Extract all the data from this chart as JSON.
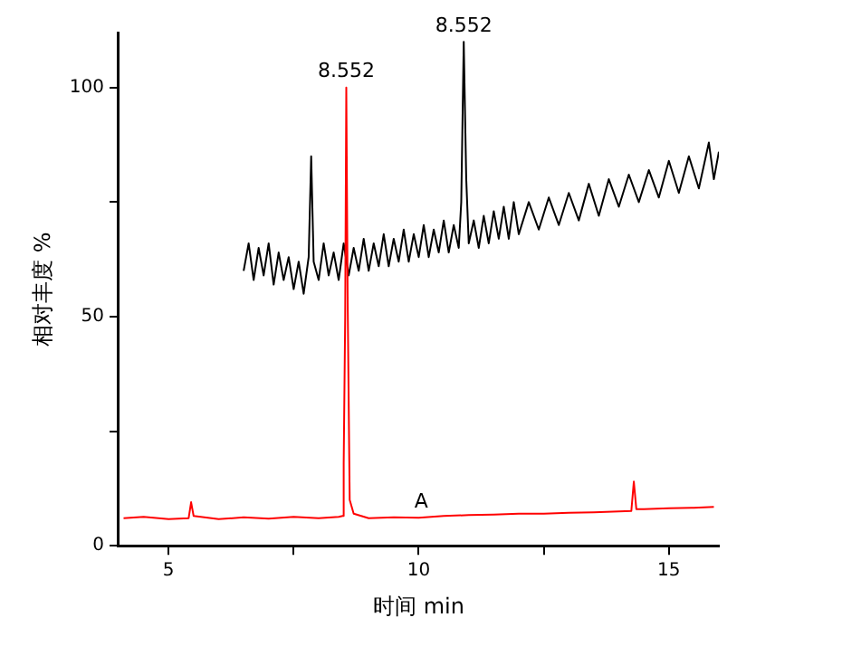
{
  "chart_data": {
    "type": "line",
    "xlabel": "时间 min",
    "ylabel": "相对丰度 %",
    "xlim": [
      4,
      16
    ],
    "xticks": [
      5,
      {
        "value": 7.5,
        "label": null
      },
      10,
      {
        "value": 12.5,
        "label": null
      },
      15
    ],
    "ylim": [
      0,
      112
    ],
    "yticks": [
      0,
      {
        "value": 25,
        "label": null
      },
      50,
      {
        "value": 75,
        "label": null
      },
      100
    ],
    "grid": false,
    "legend": false,
    "marker": "none",
    "line_style": "solid",
    "annotations": [
      {
        "text": "8.552",
        "x": 8.552,
        "y": 100
      },
      {
        "text": "8.552",
        "x": 10.9,
        "y": 110
      },
      {
        "text": "A",
        "x": 10.05,
        "y": 6.1
      }
    ],
    "series": [
      {
        "color": "#ff0000",
        "x": [
          4.1,
          4.5,
          5.0,
          5.4,
          5.45,
          5.5,
          6.0,
          6.5,
          7.0,
          7.5,
          8.0,
          8.4,
          8.48,
          8.5,
          8.53,
          8.552,
          8.58,
          8.62,
          8.7,
          9.0,
          9.5,
          10.0,
          10.5,
          11.0,
          11.5,
          12.0,
          12.5,
          13.0,
          13.5,
          14.0,
          14.25,
          14.3,
          14.35,
          14.5,
          15.0,
          15.5,
          15.9
        ],
        "values": [
          6,
          6.3,
          5.8,
          6,
          9.5,
          6.5,
          5.8,
          6.2,
          5.9,
          6.3,
          6,
          6.3,
          6.5,
          18,
          50,
          100,
          53,
          10,
          7,
          6,
          6.2,
          6.1,
          6.5,
          6.7,
          6.8,
          7,
          7,
          7.2,
          7.3,
          7.5,
          7.6,
          14,
          8,
          8,
          8.2,
          8.3,
          8.5
        ]
      },
      {
        "color": "#000000",
        "x": [
          6.5,
          6.6,
          6.7,
          6.8,
          6.9,
          7.0,
          7.1,
          7.2,
          7.3,
          7.4,
          7.5,
          7.6,
          7.7,
          7.8,
          7.85,
          7.9,
          8.0,
          8.1,
          8.2,
          8.3,
          8.4,
          8.5,
          8.6,
          8.7,
          8.8,
          8.9,
          9.0,
          9.1,
          9.2,
          9.3,
          9.4,
          9.5,
          9.6,
          9.7,
          9.8,
          9.9,
          10.0,
          10.1,
          10.2,
          10.3,
          10.4,
          10.5,
          10.6,
          10.7,
          10.8,
          10.85,
          10.9,
          10.95,
          11.0,
          11.1,
          11.2,
          11.3,
          11.4,
          11.5,
          11.6,
          11.7,
          11.8,
          11.9,
          12.0,
          12.2,
          12.4,
          12.6,
          12.8,
          13.0,
          13.2,
          13.4,
          13.6,
          13.8,
          14.0,
          14.2,
          14.4,
          14.6,
          14.8,
          15.0,
          15.2,
          15.4,
          15.6,
          15.8,
          15.9,
          16.0
        ],
        "values": [
          60,
          66,
          58,
          65,
          59,
          66,
          57,
          64,
          58,
          63,
          56,
          62,
          55,
          63,
          85,
          62,
          58,
          66,
          59,
          64,
          58,
          66,
          59,
          65,
          60,
          67,
          60,
          66,
          61,
          68,
          61,
          67,
          62,
          69,
          62,
          68,
          63,
          70,
          63,
          69,
          64,
          71,
          64,
          70,
          65,
          75,
          110,
          80,
          66,
          71,
          65,
          72,
          66,
          73,
          67,
          74,
          67,
          75,
          68,
          75,
          69,
          76,
          70,
          77,
          71,
          79,
          72,
          80,
          74,
          81,
          75,
          82,
          76,
          84,
          77,
          85,
          78,
          88,
          80,
          86
        ]
      }
    ]
  }
}
